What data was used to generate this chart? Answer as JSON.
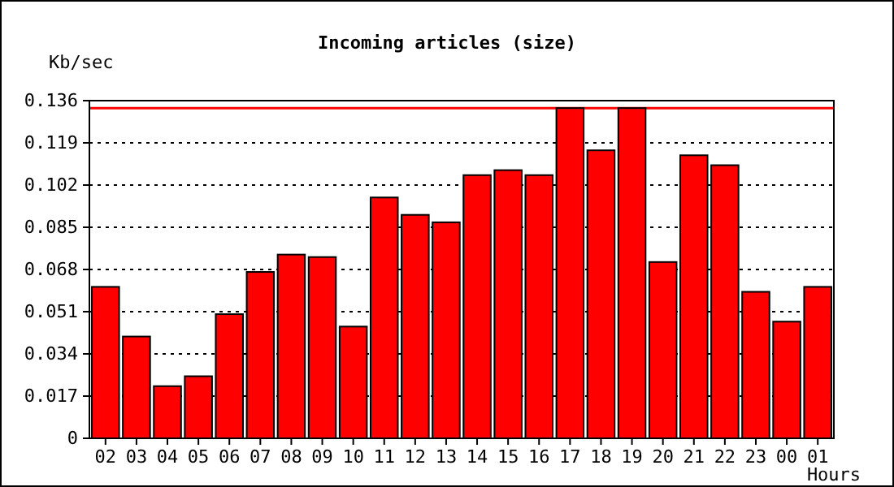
{
  "chart_data": {
    "type": "bar",
    "title": "Incoming articles (size)",
    "ylabel": "Kb/sec",
    "xlabel": "Hours",
    "categories": [
      "02",
      "03",
      "04",
      "05",
      "06",
      "07",
      "08",
      "09",
      "10",
      "11",
      "12",
      "13",
      "14",
      "15",
      "16",
      "17",
      "18",
      "19",
      "20",
      "21",
      "22",
      "23",
      "00",
      "01"
    ],
    "values": [
      0.061,
      0.041,
      0.021,
      0.025,
      0.05,
      0.067,
      0.074,
      0.073,
      0.045,
      0.097,
      0.09,
      0.087,
      0.106,
      0.108,
      0.106,
      0.133,
      0.116,
      0.133,
      0.071,
      0.114,
      0.11,
      0.059,
      0.047,
      0.061
    ],
    "color": "#ff0000",
    "ylim": [
      0,
      0.136
    ],
    "yticks": [
      {
        "value": 0,
        "label": "0"
      },
      0.017,
      0.034,
      0.051,
      0.068,
      0.085,
      0.102,
      0.119,
      0.136
    ],
    "grid": "y",
    "line_style": "dotted",
    "ref_lines": [
      {
        "axis": "y",
        "value": 0.133,
        "color": "#ff0000"
      }
    ]
  }
}
